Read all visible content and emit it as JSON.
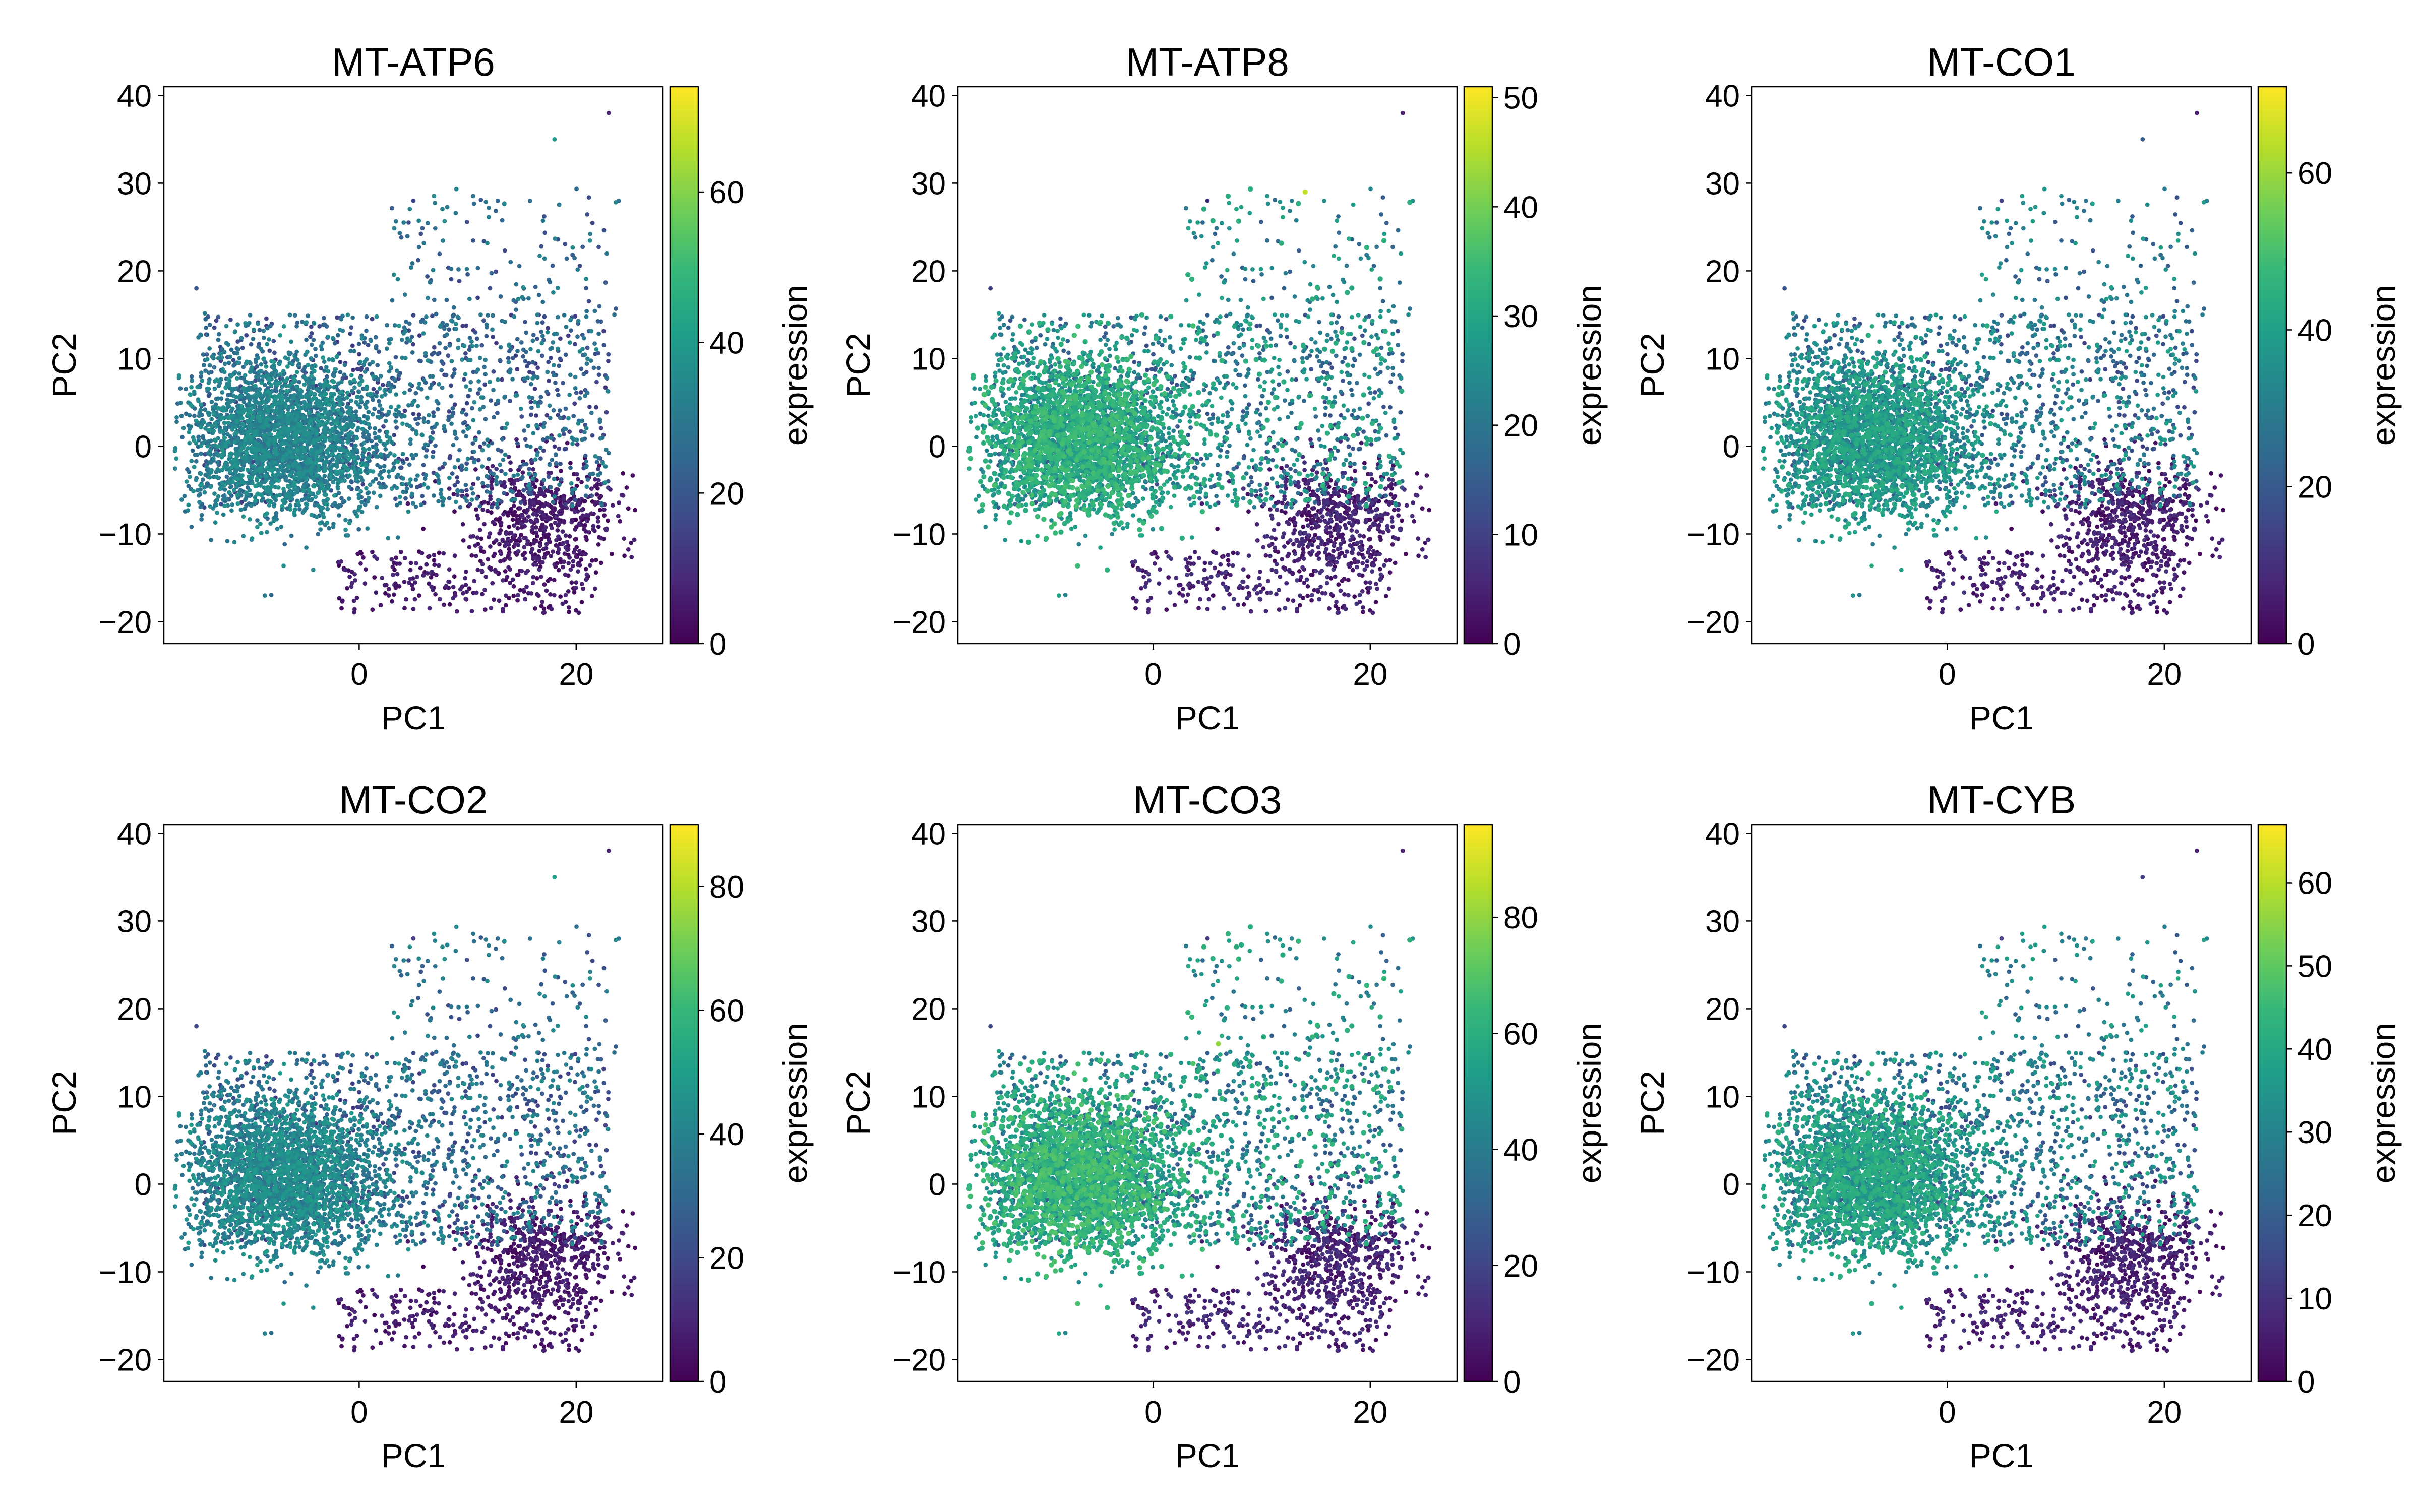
{
  "colorscale": {
    "name": "viridis",
    "stops": [
      "#440154",
      "#482777",
      "#3e4a89",
      "#31688e",
      "#26828e",
      "#1f9e89",
      "#35b779",
      "#6ece58",
      "#b5de2b",
      "#fde725"
    ]
  },
  "chart_data": [
    {
      "type": "scatter",
      "title": "MT-ATP6",
      "xlabel": "PC1",
      "ylabel": "PC2",
      "xlim": [
        -18,
        28
      ],
      "ylim": [
        -22.5,
        41
      ],
      "xticks": [
        0,
        20
      ],
      "yticks": [
        -20,
        -10,
        0,
        10,
        20,
        30,
        40
      ],
      "colorbar": {
        "label": "expression",
        "min": 0,
        "max": 74,
        "ticks": [
          0,
          20,
          40,
          60
        ]
      },
      "legend": "none",
      "grid": false,
      "points": [
        [
          -6,
          5,
          18
        ],
        [
          -10,
          -3,
          22
        ],
        [
          2,
          8,
          30
        ],
        [
          13,
          -12,
          4
        ],
        [
          20,
          -7,
          2
        ],
        [
          10,
          2,
          34
        ],
        [
          18,
          35,
          40
        ],
        [
          23,
          38,
          8
        ],
        [
          -15,
          18,
          20
        ],
        [
          5,
          28,
          16
        ]
      ]
    },
    {
      "type": "scatter",
      "title": "MT-ATP8",
      "xlabel": "PC1",
      "ylabel": "PC2",
      "xlim": [
        -18,
        28
      ],
      "ylim": [
        -22.5,
        41
      ],
      "xticks": [
        0,
        20
      ],
      "yticks": [
        -20,
        -10,
        0,
        10,
        20,
        30,
        40
      ],
      "colorbar": {
        "label": "expression",
        "min": 0,
        "max": 51,
        "ticks": [
          0,
          10,
          20,
          30,
          40,
          50
        ]
      },
      "legend": "none",
      "grid": false,
      "points": [
        [
          -6,
          5,
          8
        ],
        [
          -10,
          -3,
          10
        ],
        [
          2,
          8,
          12
        ],
        [
          13,
          -12,
          2
        ],
        [
          20,
          -7,
          1
        ],
        [
          10,
          2,
          16
        ],
        [
          14,
          29,
          46
        ],
        [
          23,
          38,
          4
        ],
        [
          -15,
          18,
          9
        ],
        [
          5,
          28,
          8
        ]
      ]
    },
    {
      "type": "scatter",
      "title": "MT-CO1",
      "xlabel": "PC1",
      "ylabel": "PC2",
      "xlim": [
        -18,
        28
      ],
      "ylim": [
        -22.5,
        41
      ],
      "xticks": [
        0,
        20
      ],
      "yticks": [
        -20,
        -10,
        0,
        10,
        20,
        30,
        40
      ],
      "colorbar": {
        "label": "expression",
        "min": 0,
        "max": 71,
        "ticks": [
          0,
          20,
          40,
          60
        ]
      },
      "legend": "none",
      "grid": false,
      "points": [
        [
          -6,
          5,
          20
        ],
        [
          -10,
          -3,
          22
        ],
        [
          2,
          8,
          30
        ],
        [
          13,
          -12,
          4
        ],
        [
          20,
          -7,
          2
        ],
        [
          10,
          2,
          28
        ],
        [
          18,
          35,
          20
        ],
        [
          23,
          38,
          6
        ],
        [
          -15,
          18,
          18
        ],
        [
          5,
          28,
          14
        ]
      ]
    },
    {
      "type": "scatter",
      "title": "MT-CO2",
      "xlabel": "PC1",
      "ylabel": "PC2",
      "xlim": [
        -18,
        28
      ],
      "ylim": [
        -22.5,
        41
      ],
      "xticks": [
        0,
        20
      ],
      "yticks": [
        -20,
        -10,
        0,
        10,
        20,
        30,
        40
      ],
      "colorbar": {
        "label": "expression",
        "min": 0,
        "max": 90,
        "ticks": [
          0,
          20,
          40,
          60,
          80
        ]
      },
      "legend": "none",
      "grid": false,
      "points": [
        [
          -6,
          5,
          20
        ],
        [
          -10,
          -3,
          22
        ],
        [
          2,
          8,
          28
        ],
        [
          13,
          -12,
          4
        ],
        [
          20,
          -7,
          2
        ],
        [
          10,
          2,
          34
        ],
        [
          18,
          35,
          50
        ],
        [
          23,
          38,
          8
        ],
        [
          -15,
          18,
          20
        ],
        [
          5,
          28,
          16
        ]
      ]
    },
    {
      "type": "scatter",
      "title": "MT-CO3",
      "xlabel": "PC1",
      "ylabel": "PC2",
      "xlim": [
        -18,
        28
      ],
      "ylim": [
        -22.5,
        41
      ],
      "xticks": [
        0,
        20
      ],
      "yticks": [
        -20,
        -10,
        0,
        10,
        20,
        30,
        40
      ],
      "colorbar": {
        "label": "expression",
        "min": 0,
        "max": 96,
        "ticks": [
          0,
          20,
          40,
          60,
          80
        ]
      },
      "legend": "none",
      "grid": false,
      "points": [
        [
          -6,
          5,
          20
        ],
        [
          -10,
          -3,
          24
        ],
        [
          2,
          8,
          30
        ],
        [
          13,
          -12,
          4
        ],
        [
          20,
          -7,
          2
        ],
        [
          10,
          2,
          30
        ],
        [
          6,
          16,
          80
        ],
        [
          23,
          38,
          8
        ],
        [
          -15,
          18,
          22
        ],
        [
          5,
          28,
          16
        ]
      ]
    },
    {
      "type": "scatter",
      "title": "MT-CYB",
      "xlabel": "PC1",
      "ylabel": "PC2",
      "xlim": [
        -18,
        28
      ],
      "ylim": [
        -22.5,
        41
      ],
      "xticks": [
        0,
        20
      ],
      "yticks": [
        -20,
        -10,
        0,
        10,
        20,
        30,
        40
      ],
      "colorbar": {
        "label": "expression",
        "min": 0,
        "max": 67,
        "ticks": [
          0,
          10,
          20,
          30,
          40,
          50,
          60
        ]
      },
      "legend": "none",
      "grid": false,
      "points": [
        [
          -6,
          5,
          18
        ],
        [
          -10,
          -3,
          16
        ],
        [
          2,
          8,
          24
        ],
        [
          13,
          -12,
          3
        ],
        [
          20,
          -7,
          2
        ],
        [
          10,
          2,
          22
        ],
        [
          18,
          35,
          12
        ],
        [
          23,
          38,
          6
        ],
        [
          -15,
          18,
          14
        ],
        [
          5,
          28,
          12
        ]
      ]
    }
  ]
}
